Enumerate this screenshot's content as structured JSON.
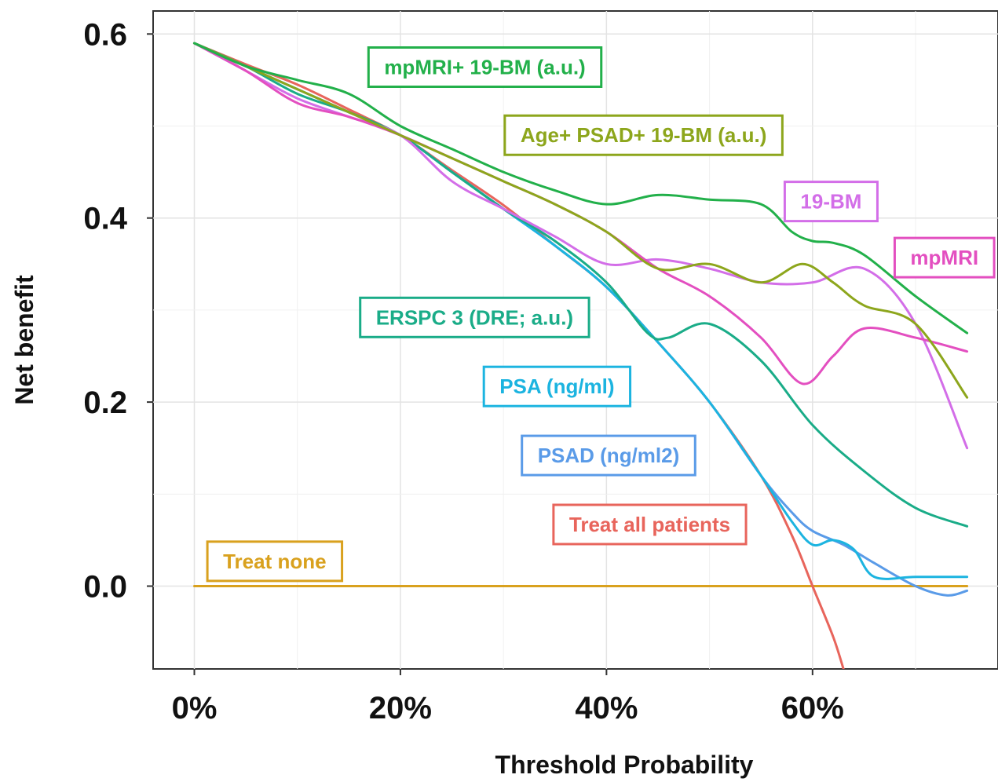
{
  "chart_data": {
    "type": "line",
    "title": "",
    "xlabel": "Threshold Probability",
    "ylabel": "Net benefit",
    "xlim": [
      -0.04,
      0.78
    ],
    "ylim": [
      -0.09,
      0.625
    ],
    "x_ticks": [
      {
        "value": 0.0,
        "label": "0%"
      },
      {
        "value": 0.2,
        "label": "20%"
      },
      {
        "value": 0.4,
        "label": "40%"
      },
      {
        "value": 0.6,
        "label": "60%"
      }
    ],
    "y_ticks": [
      {
        "value": 0.0,
        "label": "0.0"
      },
      {
        "value": 0.2,
        "label": "0.2"
      },
      {
        "value": 0.4,
        "label": "0.4"
      },
      {
        "value": 0.6,
        "label": "0.6"
      }
    ],
    "grid": true,
    "series": [
      {
        "name": "mpMRI+ 19-BM (a.u.)",
        "color": "#22b04a",
        "x": [
          0,
          0.05,
          0.1,
          0.15,
          0.2,
          0.25,
          0.3,
          0.35,
          0.4,
          0.45,
          0.5,
          0.55,
          0.58,
          0.6,
          0.62,
          0.65,
          0.7,
          0.75
        ],
        "y": [
          0.59,
          0.565,
          0.55,
          0.535,
          0.5,
          0.475,
          0.45,
          0.43,
          0.415,
          0.425,
          0.42,
          0.415,
          0.385,
          0.375,
          0.373,
          0.36,
          0.315,
          0.275
        ]
      },
      {
        "name": "Age+ PSAD+ 19-BM (a.u.)",
        "color": "#8da61c",
        "x": [
          0,
          0.05,
          0.1,
          0.15,
          0.2,
          0.25,
          0.3,
          0.35,
          0.4,
          0.45,
          0.5,
          0.55,
          0.59,
          0.62,
          0.65,
          0.7,
          0.75
        ],
        "y": [
          0.59,
          0.565,
          0.54,
          0.515,
          0.49,
          0.465,
          0.44,
          0.415,
          0.385,
          0.345,
          0.35,
          0.33,
          0.35,
          0.33,
          0.305,
          0.285,
          0.205
        ]
      },
      {
        "name": "19-BM",
        "color": "#d36ee8",
        "x": [
          0,
          0.05,
          0.1,
          0.15,
          0.2,
          0.25,
          0.3,
          0.35,
          0.4,
          0.45,
          0.5,
          0.55,
          0.6,
          0.65,
          0.7,
          0.75
        ],
        "y": [
          0.59,
          0.56,
          0.53,
          0.51,
          0.49,
          0.44,
          0.41,
          0.38,
          0.35,
          0.355,
          0.345,
          0.33,
          0.33,
          0.345,
          0.285,
          0.15
        ]
      },
      {
        "name": "mpMRI",
        "color": "#e34fc0",
        "x": [
          0,
          0.05,
          0.1,
          0.15,
          0.2,
          0.25,
          0.3,
          0.35,
          0.4,
          0.45,
          0.5,
          0.55,
          0.59,
          0.62,
          0.65,
          0.7,
          0.75
        ],
        "y": [
          0.59,
          0.56,
          0.525,
          0.51,
          0.49,
          0.465,
          0.44,
          0.415,
          0.385,
          0.345,
          0.315,
          0.27,
          0.22,
          0.25,
          0.28,
          0.27,
          0.255
        ]
      },
      {
        "name": "ERSPC 3 (DRE; a.u.)",
        "color": "#1aac88",
        "x": [
          0,
          0.05,
          0.1,
          0.15,
          0.2,
          0.25,
          0.3,
          0.35,
          0.4,
          0.44,
          0.46,
          0.5,
          0.55,
          0.6,
          0.65,
          0.7,
          0.75
        ],
        "y": [
          0.59,
          0.565,
          0.535,
          0.515,
          0.49,
          0.45,
          0.41,
          0.375,
          0.33,
          0.275,
          0.27,
          0.285,
          0.245,
          0.175,
          0.125,
          0.085,
          0.065
        ]
      },
      {
        "name": "PSA (ng/ml)",
        "color": "#1cb4e0",
        "x": [
          0,
          0.05,
          0.1,
          0.15,
          0.2,
          0.25,
          0.3,
          0.35,
          0.4,
          0.45,
          0.5,
          0.55,
          0.58,
          0.6,
          0.62,
          0.64,
          0.66,
          0.7,
          0.75
        ],
        "y": [
          0.59,
          0.565,
          0.54,
          0.515,
          0.49,
          0.45,
          0.41,
          0.37,
          0.325,
          0.265,
          0.2,
          0.12,
          0.07,
          0.045,
          0.05,
          0.04,
          0.01,
          0.01,
          0.01
        ]
      },
      {
        "name": "PSAD (ng/ml2)",
        "color": "#5a9be8",
        "x": [
          0,
          0.05,
          0.1,
          0.15,
          0.2,
          0.25,
          0.3,
          0.35,
          0.4,
          0.45,
          0.5,
          0.55,
          0.58,
          0.6,
          0.63,
          0.66,
          0.7,
          0.73,
          0.75
        ],
        "y": [
          0.59,
          0.565,
          0.54,
          0.515,
          0.49,
          0.45,
          0.41,
          0.37,
          0.325,
          0.265,
          0.2,
          0.12,
          0.08,
          0.06,
          0.045,
          0.025,
          0.0,
          -0.01,
          -0.005
        ]
      },
      {
        "name": "Treat all patients",
        "color": "#e8655c",
        "x": [
          0,
          0.05,
          0.1,
          0.15,
          0.2,
          0.25,
          0.3,
          0.35,
          0.4,
          0.45,
          0.5,
          0.55,
          0.58,
          0.6,
          0.62,
          0.63
        ],
        "y": [
          0.59,
          0.567,
          0.545,
          0.518,
          0.49,
          0.452,
          0.414,
          0.37,
          0.325,
          0.265,
          0.2,
          0.12,
          0.055,
          0.0,
          -0.055,
          -0.09
        ]
      },
      {
        "name": "Treat none",
        "color": "#d9a11e",
        "x": [
          0,
          0.75
        ],
        "y": [
          0,
          0
        ]
      }
    ],
    "labels": [
      {
        "series": "mpMRI+ 19-BM (a.u.)",
        "text": "mpMRI+ 19-BM (a.u.)",
        "x": 0.282,
        "y": 0.564
      },
      {
        "series": "Age+ PSAD+ 19-BM (a.u.)",
        "text": "Age+ PSAD+ 19-BM (a.u.)",
        "x": 0.436,
        "y": 0.49
      },
      {
        "series": "19-BM",
        "text": "19-BM",
        "x": 0.618,
        "y": 0.418
      },
      {
        "series": "mpMRI",
        "text": "mpMRI",
        "x": 0.728,
        "y": 0.357
      },
      {
        "series": "ERSPC 3 (DRE; a.u.)",
        "text": "ERSPC 3 (DRE; a.u.)",
        "x": 0.272,
        "y": 0.292
      },
      {
        "series": "PSA (ng/ml)",
        "text": "PSA (ng/ml)",
        "x": 0.352,
        "y": 0.217
      },
      {
        "series": "PSAD (ng/ml2)",
        "text": "PSAD (ng/ml2)",
        "x": 0.402,
        "y": 0.142
      },
      {
        "series": "Treat all patients",
        "text": "Treat all patients",
        "x": 0.442,
        "y": 0.067
      },
      {
        "series": "Treat none",
        "text": "Treat none",
        "x": 0.078,
        "y": 0.027
      }
    ]
  }
}
